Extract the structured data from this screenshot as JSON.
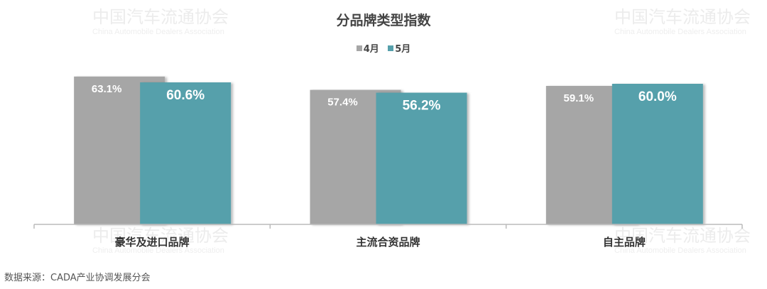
{
  "chart_data": {
    "type": "bar",
    "title": "分品牌类型指数",
    "categories": [
      "豪华及进口品牌",
      "主流合资品牌",
      "自主品牌"
    ],
    "series": [
      {
        "name": "4月",
        "values": [
          63.1,
          57.4,
          59.1
        ],
        "labels": [
          "63.1%",
          "57.4%",
          "59.1%"
        ],
        "color": "#a6a6a6"
      },
      {
        "name": "5月",
        "values": [
          60.6,
          56.2,
          60.0
        ],
        "labels": [
          "60.6%",
          "56.2%",
          "60.0%"
        ],
        "color": "#56a0ab"
      }
    ],
    "legend": "top",
    "grid": false,
    "ylim": [
      0,
      70
    ]
  },
  "source": "数据来源：CADA产业协调发展分会",
  "watermark": {
    "name_cn": "中国汽车流通协会",
    "name_en": "China Automobile Dealers Association"
  }
}
